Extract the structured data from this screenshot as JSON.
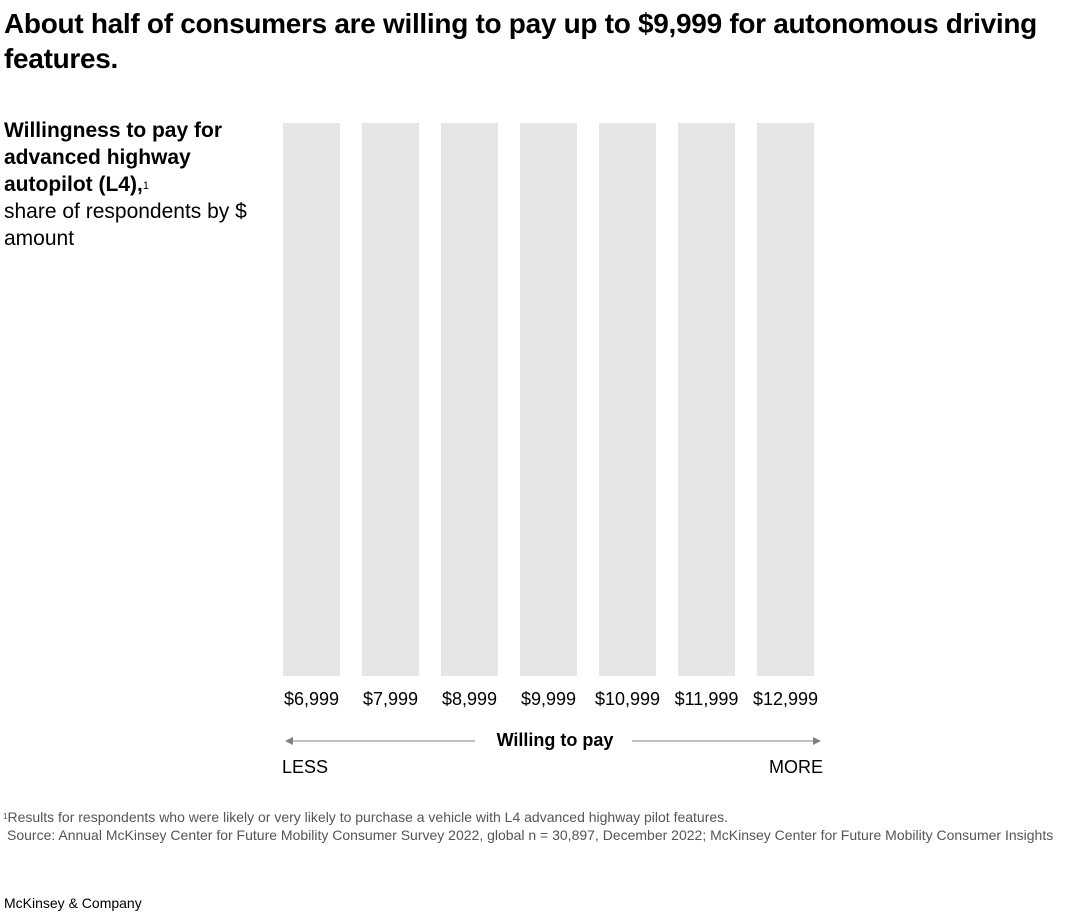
{
  "title": "About half of consumers are willing to pay up to $9,999 for autonomous driving features.",
  "subtitle": {
    "bold": "Willingness to pay for advanced highway autopilot (L4),",
    "footnote_mark": "1",
    "regular": "share of respondents by $ amount"
  },
  "chart_data": {
    "type": "bar",
    "categories": [
      "$6,999",
      "$7,999",
      "$8,999",
      "$9,999",
      "$10,999",
      "$11,999",
      "$12,999"
    ],
    "xlabel": "Willing to pay",
    "x_direction_labels": {
      "left": "LESS",
      "right": "MORE"
    },
    "track_color": "#e6e6e6",
    "arrow_color": "#808080"
  },
  "footnotes": {
    "note_mark": "1",
    "note": "Results for respondents who were likely or very likely to purchase a vehicle with L4 advanced highway pilot features.",
    "source": "Source: Annual McKinsey Center for Future Mobility Consumer Survey 2022, global n = 30,897, December 2022; McKinsey Center for Future Mobility Consumer Insights"
  },
  "brand": "McKinsey & Company"
}
